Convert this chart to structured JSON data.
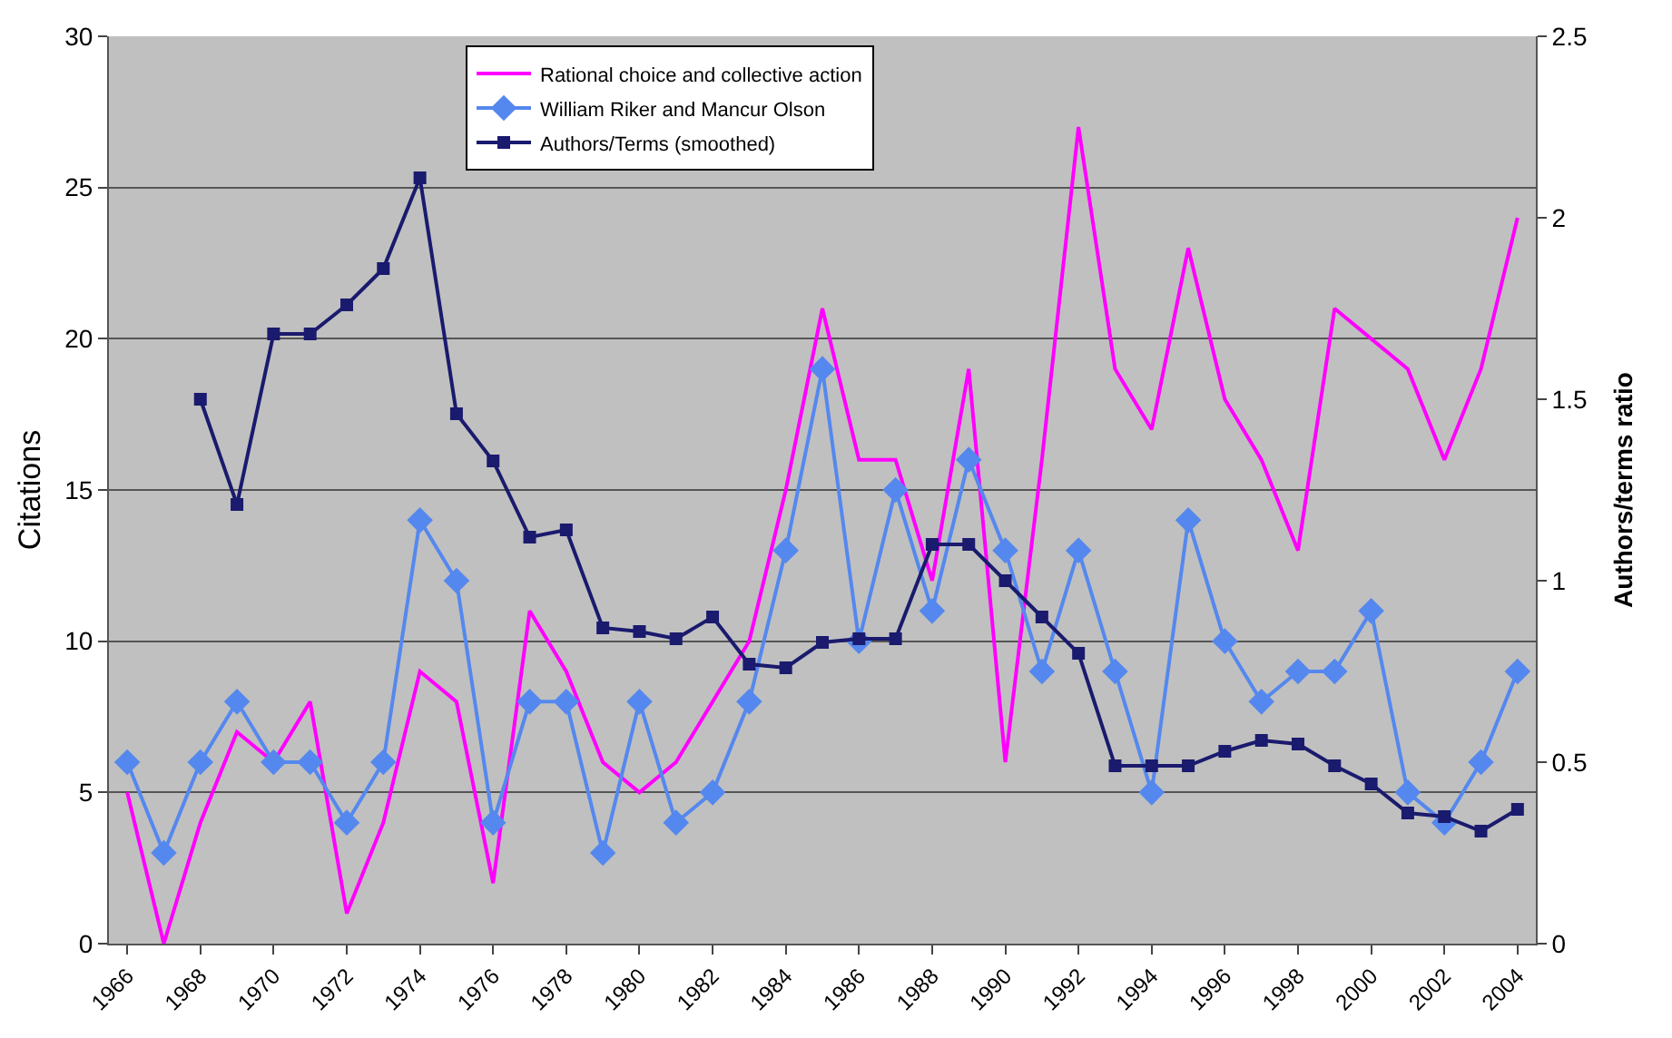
{
  "chart_data": {
    "type": "line",
    "ylabel": "Citations",
    "y2label": "Authors/terms ratio",
    "x": [
      1966,
      1967,
      1968,
      1969,
      1970,
      1971,
      1972,
      1973,
      1974,
      1975,
      1976,
      1977,
      1978,
      1979,
      1980,
      1981,
      1982,
      1983,
      1984,
      1985,
      1986,
      1987,
      1988,
      1989,
      1990,
      1991,
      1992,
      1993,
      1994,
      1995,
      1996,
      1997,
      1998,
      1999,
      2000,
      2001,
      2002,
      2003,
      2004
    ],
    "xlim": [
      1965.5,
      2004.5
    ],
    "xticks": [
      1966,
      1968,
      1970,
      1972,
      1974,
      1976,
      1978,
      1980,
      1982,
      1984,
      1986,
      1988,
      1990,
      1992,
      1994,
      1996,
      1998,
      2000,
      2002,
      2004
    ],
    "ylim": [
      0,
      30
    ],
    "yticks": [
      0,
      5,
      10,
      15,
      20,
      25,
      30
    ],
    "y2lim": [
      0,
      2.5
    ],
    "y2ticks": [
      0,
      0.5,
      1,
      1.5,
      2,
      2.5
    ],
    "grid": "y",
    "legend": "top",
    "series": [
      {
        "name": "Rational choice and collective action",
        "color": "#ff00ff",
        "marker": "none",
        "values": [
          5,
          0,
          4,
          7,
          6,
          8,
          1,
          4,
          9,
          8,
          2,
          11,
          9,
          6,
          5,
          6,
          8,
          10,
          15,
          21,
          16,
          16,
          12,
          19,
          6,
          16,
          27,
          19,
          17,
          23,
          18,
          16,
          13,
          21,
          20,
          19,
          16,
          19,
          24
        ]
      },
      {
        "name": "William Riker and Mancur Olson",
        "color": "#5588ee",
        "marker": "diamond",
        "values": [
          6,
          3,
          6,
          8,
          6,
          6,
          4,
          6,
          14,
          12,
          4,
          8,
          8,
          3,
          8,
          4,
          5,
          8,
          13,
          19,
          10,
          15,
          11,
          16,
          13,
          9,
          13,
          9,
          5,
          14,
          10,
          8,
          9,
          9,
          11,
          5,
          4,
          6,
          9
        ]
      },
      {
        "name": "Authors/Terms (smoothed)",
        "color": "#1a1a6e",
        "marker": "square",
        "axis": "y2",
        "values": [
          null,
          null,
          1.5,
          1.21,
          1.68,
          1.68,
          1.76,
          1.86,
          2.11,
          1.46,
          1.33,
          1.12,
          1.14,
          0.87,
          0.86,
          0.84,
          0.9,
          0.77,
          0.76,
          0.83,
          0.84,
          0.84,
          1.1,
          1.1,
          1.0,
          0.9,
          0.8,
          0.49,
          0.49,
          0.49,
          0.53,
          0.56,
          0.55,
          0.49,
          0.44,
          0.36,
          0.35,
          0.31,
          0.37
        ]
      }
    ]
  }
}
